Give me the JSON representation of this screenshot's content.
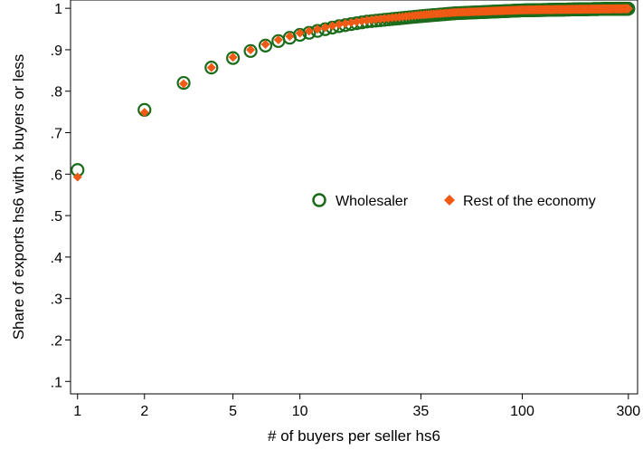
{
  "chart_data": {
    "type": "scatter",
    "title": "",
    "xlabel": "# of buyers per seller hs6",
    "ylabel": "Share of exports hs6 with x buyers or less",
    "x_scale": "log",
    "xlim": [
      0.93,
      330
    ],
    "ylim": [
      0.07,
      1.02
    ],
    "x_ticks": [
      1,
      2,
      5,
      10,
      35,
      100,
      300
    ],
    "x_tick_labels": [
      "1",
      "2",
      "5",
      "10",
      "35",
      "100",
      "300"
    ],
    "y_ticks": [
      0.1,
      0.2,
      0.3,
      0.4,
      0.5,
      0.6,
      0.7,
      0.8,
      0.9,
      1.0
    ],
    "y_tick_labels": [
      ".1",
      ".2",
      ".3",
      ".4",
      ".5",
      ".6",
      ".7",
      ".8",
      ".9",
      "1"
    ],
    "grid": false,
    "legend_position": "right",
    "x_range": [
      1,
      300
    ],
    "series": [
      {
        "name": "Wholesaler",
        "marker": "hollow-circle",
        "color": "#1a6b1a",
        "anchors": [
          [
            1,
            0.61
          ],
          [
            2,
            0.755
          ],
          [
            3,
            0.82
          ],
          [
            4,
            0.857
          ],
          [
            5,
            0.88
          ],
          [
            6,
            0.897
          ],
          [
            7,
            0.91
          ],
          [
            8,
            0.921
          ],
          [
            10,
            0.936
          ],
          [
            15,
            0.957
          ],
          [
            20,
            0.968
          ],
          [
            35,
            0.981
          ],
          [
            50,
            0.988
          ],
          [
            100,
            0.995
          ],
          [
            200,
            0.998
          ],
          [
            300,
            0.999
          ]
        ]
      },
      {
        "name": "Rest of the economy",
        "marker": "filled-diamond",
        "color": "#f05a14",
        "anchors": [
          [
            1,
            0.593
          ],
          [
            2,
            0.749
          ],
          [
            3,
            0.818
          ],
          [
            4,
            0.857
          ],
          [
            5,
            0.882
          ],
          [
            6,
            0.9
          ],
          [
            7,
            0.913
          ],
          [
            8,
            0.924
          ],
          [
            10,
            0.94
          ],
          [
            15,
            0.961
          ],
          [
            20,
            0.971
          ],
          [
            35,
            0.984
          ],
          [
            50,
            0.99
          ],
          [
            100,
            0.996
          ],
          [
            200,
            0.998
          ],
          [
            300,
            0.999
          ]
        ]
      }
    ]
  }
}
